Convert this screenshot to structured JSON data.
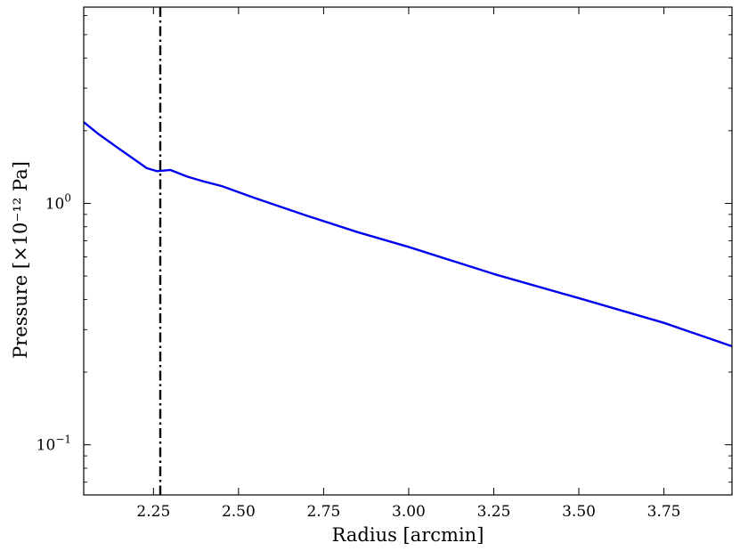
{
  "chart_data": {
    "type": "line",
    "xlabel": "Radius [arcmin]",
    "ylabel": "Pressure [×10⁻¹² Pa]",
    "xlim": [
      2.045,
      3.95
    ],
    "ylim": [
      0.062,
      6.5
    ],
    "y_scale": "log",
    "grid": false,
    "x_ticks": [
      {
        "value": 2.25,
        "label": "2.25"
      },
      {
        "value": 2.5,
        "label": "2.50"
      },
      {
        "value": 2.75,
        "label": "2.75"
      },
      {
        "value": 3.0,
        "label": "3.00"
      },
      {
        "value": 3.25,
        "label": "3.25"
      },
      {
        "value": 3.5,
        "label": "3.50"
      },
      {
        "value": 3.75,
        "label": "3.75"
      }
    ],
    "y_major_ticks": [
      {
        "value": 0.1,
        "base": "10",
        "exp": "−1"
      },
      {
        "value": 1.0,
        "base": "10",
        "exp": "0"
      }
    ],
    "y_minor_ticks": [
      0.07,
      0.08,
      0.09,
      0.2,
      0.3,
      0.4,
      0.5,
      0.6,
      0.7,
      0.8,
      0.9,
      2,
      3,
      4,
      5,
      6
    ],
    "series": [
      {
        "color": "#0000ee",
        "x": [
          2.045,
          2.09,
          2.15,
          2.2,
          2.23,
          2.26,
          2.275,
          2.3,
          2.35,
          2.4,
          2.45,
          2.55,
          2.7,
          2.85,
          3.0,
          3.25,
          3.5,
          3.75,
          3.95
        ],
        "y": [
          2.17,
          1.93,
          1.68,
          1.5,
          1.4,
          1.36,
          1.365,
          1.375,
          1.29,
          1.23,
          1.18,
          1.05,
          0.89,
          0.76,
          0.66,
          0.51,
          0.405,
          0.32,
          0.256
        ]
      }
    ],
    "vlines": [
      {
        "x": 2.27,
        "style": "dashdot",
        "color": "#000000"
      }
    ]
  }
}
